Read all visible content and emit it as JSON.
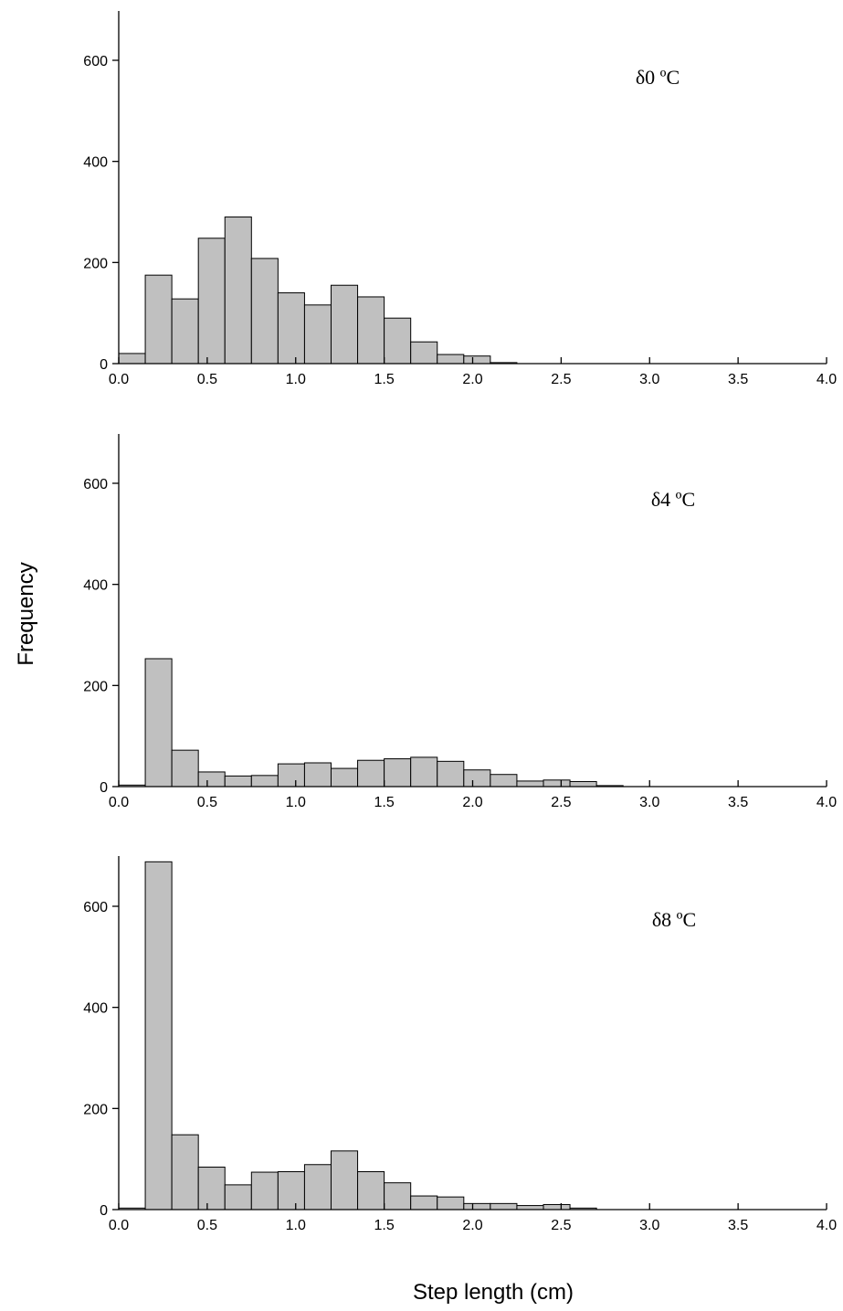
{
  "chart_data": {
    "type": "bar",
    "ylabel": "Frequency",
    "xlabel": "Step length (cm)",
    "xlim": [
      0,
      4.0
    ],
    "ylim": [
      0,
      700
    ],
    "bin_width": 0.15,
    "bin_starts": [
      0.0,
      0.15,
      0.3,
      0.45,
      0.6,
      0.75,
      0.9,
      1.05,
      1.2,
      1.35,
      1.5,
      1.65,
      1.8,
      1.95,
      2.1,
      2.25,
      2.4,
      2.55,
      2.7
    ],
    "x_ticks": [
      "0.0",
      "0.5",
      "1.0",
      "1.5",
      "2.0",
      "2.5",
      "3.0",
      "3.5",
      "4.0"
    ],
    "y_ticks": [
      "0",
      "200",
      "400",
      "600"
    ],
    "grid": false,
    "panels": [
      {
        "label": "δ0 ºC",
        "values": [
          20,
          175,
          128,
          248,
          290,
          208,
          140,
          116,
          155,
          132,
          90,
          43,
          18,
          15,
          2,
          0,
          0,
          0,
          0
        ]
      },
      {
        "label": "δ4 ºC",
        "values": [
          3,
          253,
          72,
          29,
          21,
          22,
          45,
          47,
          36,
          52,
          55,
          58,
          50,
          33,
          24,
          11,
          13,
          10,
          2
        ]
      },
      {
        "label": "δ8 ºC",
        "values": [
          3,
          688,
          148,
          84,
          49,
          74,
          75,
          89,
          116,
          75,
          53,
          27,
          25,
          12,
          12,
          8,
          10,
          3,
          0
        ]
      }
    ]
  }
}
